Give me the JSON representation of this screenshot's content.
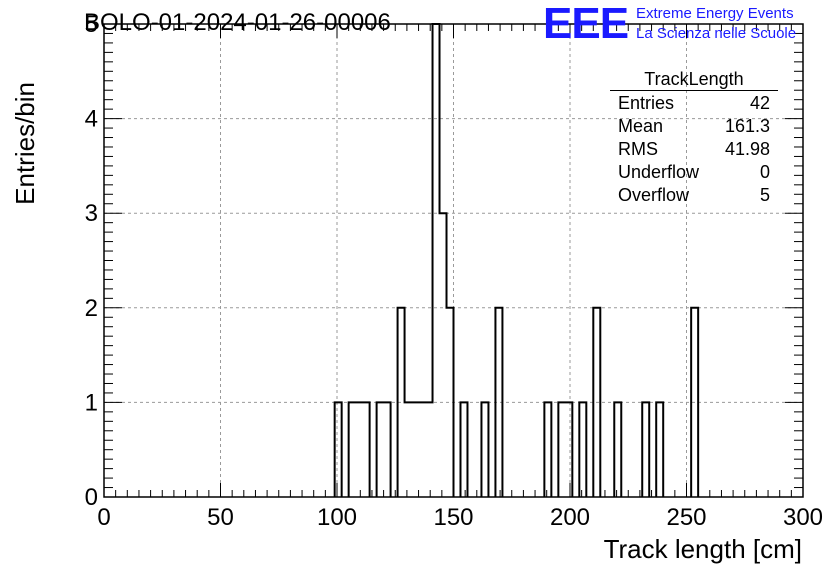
{
  "title": "BOLO-01-2024-01-26-00006",
  "logo": {
    "mark": "EEE",
    "line1": "Extreme Energy Events",
    "line2": "La Scienza nelle Scuole",
    "color": "#1a1aff"
  },
  "stats_box": {
    "title": "TrackLength",
    "rows": [
      {
        "label": "Entries",
        "value": "42"
      },
      {
        "label": "Mean",
        "value": "161.3"
      },
      {
        "label": "RMS",
        "value": "41.98"
      },
      {
        "label": "Underflow",
        "value": "0"
      },
      {
        "label": "Overflow",
        "value": "5"
      }
    ]
  },
  "chart_data": {
    "type": "bar",
    "histogram": true,
    "xlabel": "Track length [cm]",
    "ylabel": "Entries/bin",
    "xlim": [
      0,
      300
    ],
    "ylim": [
      0,
      5
    ],
    "x_ticks": [
      "0",
      "50",
      "100",
      "150",
      "200",
      "250",
      "300"
    ],
    "y_ticks": [
      "0",
      "1",
      "2",
      "3",
      "4",
      "5"
    ],
    "grid": true,
    "bin_width": 3,
    "bins": [
      {
        "x0": 99,
        "x1": 102,
        "value": 1
      },
      {
        "x0": 105,
        "x1": 114,
        "value": 1
      },
      {
        "x0": 117,
        "x1": 123,
        "value": 1
      },
      {
        "x0": 126,
        "x1": 129,
        "value": 2
      },
      {
        "x0": 129,
        "x1": 141,
        "value": 1
      },
      {
        "x0": 141,
        "x1": 144,
        "value": 5
      },
      {
        "x0": 144,
        "x1": 147,
        "value": 3
      },
      {
        "x0": 147,
        "x1": 150,
        "value": 2
      },
      {
        "x0": 153,
        "x1": 156,
        "value": 1
      },
      {
        "x0": 162,
        "x1": 165,
        "value": 1
      },
      {
        "x0": 168,
        "x1": 171,
        "value": 2
      },
      {
        "x0": 189,
        "x1": 192,
        "value": 1
      },
      {
        "x0": 195,
        "x1": 201,
        "value": 1
      },
      {
        "x0": 204,
        "x1": 207,
        "value": 1
      },
      {
        "x0": 210,
        "x1": 213,
        "value": 2
      },
      {
        "x0": 219,
        "x1": 222,
        "value": 1
      },
      {
        "x0": 231,
        "x1": 234,
        "value": 1
      },
      {
        "x0": 237,
        "x1": 240,
        "value": 1
      },
      {
        "x0": 252,
        "x1": 255,
        "value": 2
      }
    ]
  }
}
